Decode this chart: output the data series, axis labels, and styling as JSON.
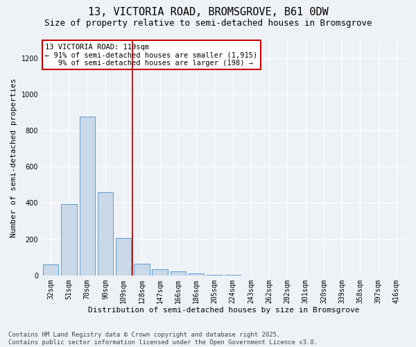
{
  "title1": "13, VICTORIA ROAD, BROMSGROVE, B61 0DW",
  "title2": "Size of property relative to semi-detached houses in Bromsgrove",
  "xlabel": "Distribution of semi-detached houses by size in Bromsgrove",
  "ylabel": "Number of semi-detached properties",
  "categories": [
    "32sqm",
    "51sqm",
    "70sqm",
    "90sqm",
    "109sqm",
    "128sqm",
    "147sqm",
    "166sqm",
    "186sqm",
    "205sqm",
    "224sqm",
    "243sqm",
    "262sqm",
    "282sqm",
    "301sqm",
    "320sqm",
    "339sqm",
    "358sqm",
    "397sqm",
    "416sqm"
  ],
  "values": [
    60,
    395,
    875,
    460,
    205,
    65,
    35,
    22,
    12,
    5,
    2,
    1,
    0,
    0,
    0,
    0,
    0,
    0,
    0,
    0
  ],
  "bar_color": "#c9d9e8",
  "bar_edge_color": "#5b9bd5",
  "vline_x": 4.5,
  "vline_color": "#9b0000",
  "annotation_line1": "13 VICTORIA ROAD: 119sqm",
  "annotation_line2": "← 91% of semi-detached houses are smaller (1,915)",
  "annotation_line3": "   9% of semi-detached houses are larger (198) →",
  "annotation_box_color": "#ffffff",
  "annotation_box_edge": "#cc0000",
  "ylim": [
    0,
    1300
  ],
  "yticks": [
    0,
    200,
    400,
    600,
    800,
    1000,
    1200
  ],
  "footer": "Contains HM Land Registry data © Crown copyright and database right 2025.\nContains public sector information licensed under the Open Government Licence v3.0.",
  "bg_color": "#eef2f7",
  "plot_bg_color": "#eef2f7",
  "grid_color": "#ffffff",
  "title_fontsize": 11,
  "subtitle_fontsize": 9,
  "tick_fontsize": 7,
  "ylabel_fontsize": 8,
  "xlabel_fontsize": 8,
  "annot_fontsize": 7.5,
  "footer_fontsize": 6.5
}
